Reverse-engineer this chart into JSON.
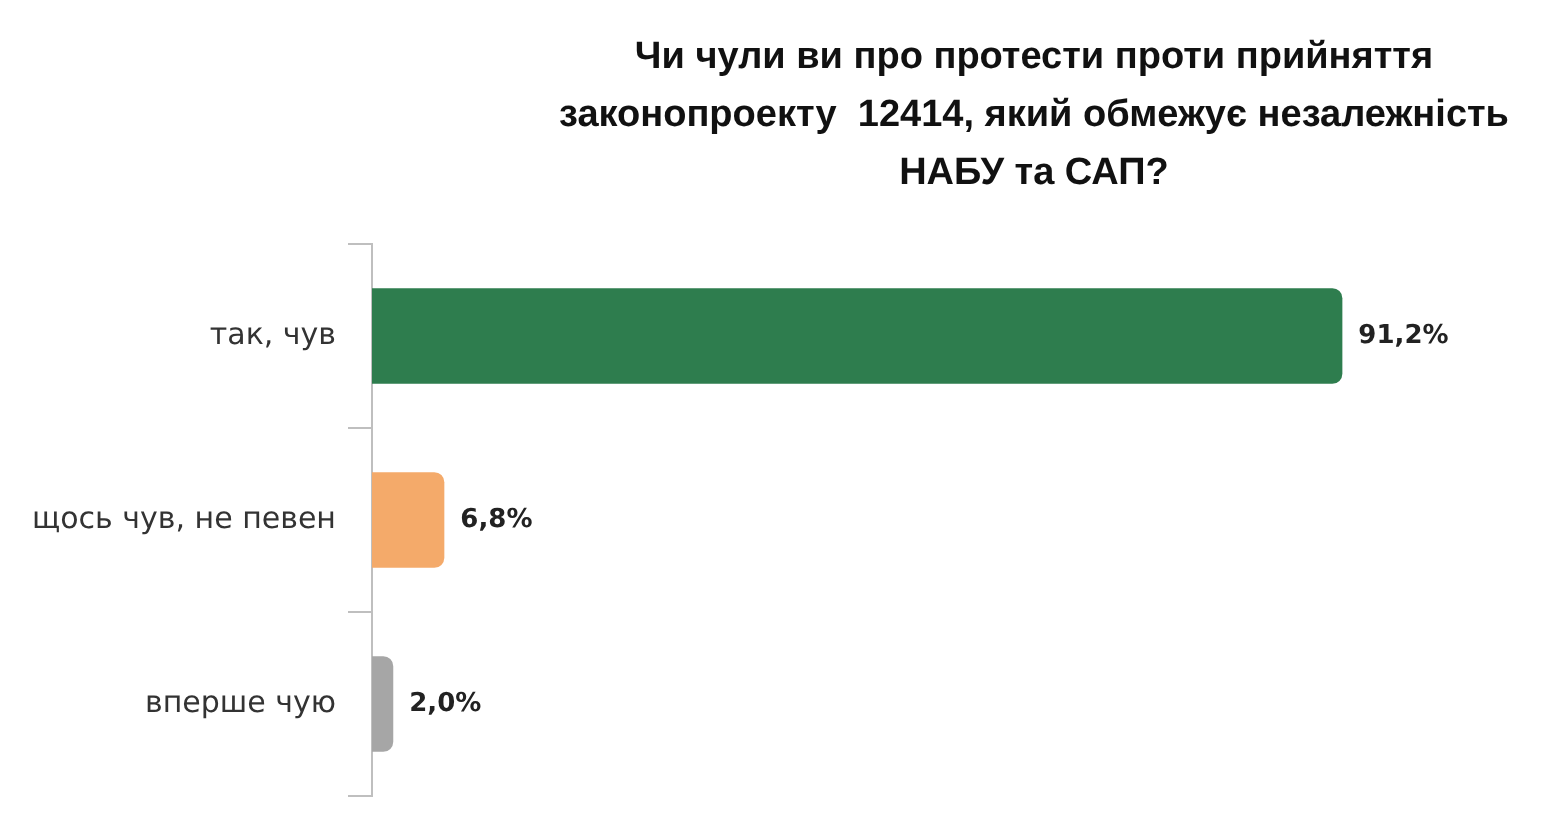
{
  "chart_data": {
    "type": "bar",
    "orientation": "horizontal",
    "title": "Чи чули ви про протести проти прийняття законопроекту  12414, який обмежує незалежність НАБУ та САП?",
    "categories": [
      "так, чув",
      "щось чув, не певен",
      "вперше чую"
    ],
    "values": [
      91.2,
      6.8,
      2.0
    ],
    "colors": [
      "#2e7d4e",
      "#f4aa6a",
      "#a6a6a6"
    ],
    "value_labels": [
      "91,2%",
      "6,8%",
      "2,0%"
    ],
    "grid": false,
    "legend": false
  }
}
